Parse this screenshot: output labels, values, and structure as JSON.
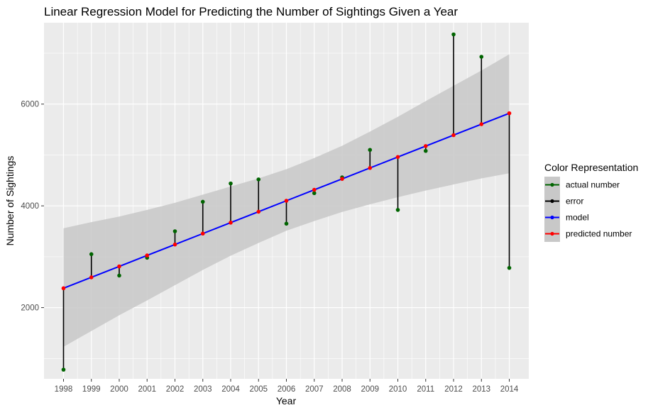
{
  "chart_data": {
    "type": "line",
    "title": "Linear Regression Model for Predicting the Number of Sightings Given a Year",
    "xlabel": "Year",
    "ylabel": "Number of Sightings",
    "x": [
      1998,
      1999,
      2000,
      2001,
      2002,
      2003,
      2004,
      2005,
      2006,
      2007,
      2008,
      2009,
      2010,
      2011,
      2012,
      2013,
      2014
    ],
    "xlim": [
      1997.3,
      2014.7
    ],
    "ylim": [
      600,
      7600
    ],
    "yticks": [
      2000,
      4000,
      6000
    ],
    "grid": true,
    "legend_position": "right",
    "legend_title": "Color Representation",
    "series": [
      {
        "name": "actual number",
        "color": "#006400",
        "values": [
          780,
          3050,
          2630,
          2980,
          3500,
          4080,
          4440,
          4520,
          3650,
          4250,
          4560,
          5100,
          3920,
          5080,
          7370,
          6930,
          2780
        ]
      },
      {
        "name": "error",
        "color": "#000000"
      },
      {
        "name": "model",
        "color": "#0000ff"
      },
      {
        "name": "predicted number",
        "color": "#ff0000",
        "values": [
          2380,
          2595,
          2810,
          3025,
          3240,
          3455,
          3670,
          3885,
          4100,
          4315,
          4530,
          4745,
          4960,
          5175,
          5390,
          5605,
          5820
        ]
      }
    ],
    "confidence_band": {
      "color": "#c8c8c8",
      "lower": [
        1230,
        1540,
        1850,
        2140,
        2440,
        2740,
        3020,
        3270,
        3510,
        3700,
        3880,
        4030,
        4170,
        4300,
        4420,
        4540,
        4640
      ],
      "upper": [
        3560,
        3680,
        3790,
        3920,
        4060,
        4220,
        4380,
        4540,
        4720,
        4940,
        5180,
        5460,
        5750,
        6060,
        6360,
        6660,
        6980
      ]
    }
  }
}
